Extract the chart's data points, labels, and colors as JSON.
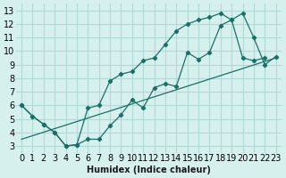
{
  "xlabel": "Humidex (Indice chaleur)",
  "ylabel": "",
  "bg_color": "#d6f0ee",
  "grid_color": "#b0d8d4",
  "line_color": "#1a7068",
  "xlim": [
    -0.5,
    23.5
  ],
  "ylim": [
    2.5,
    13.5
  ],
  "xticks": [
    0,
    1,
    2,
    3,
    4,
    5,
    6,
    7,
    8,
    9,
    10,
    11,
    12,
    13,
    14,
    15,
    16,
    17,
    18,
    19,
    20,
    21,
    22,
    23
  ],
  "yticks": [
    3,
    4,
    5,
    6,
    7,
    8,
    9,
    10,
    11,
    12,
    13
  ],
  "line1_x": [
    0,
    1,
    2,
    3,
    4,
    5,
    6,
    7,
    8,
    9,
    10,
    11,
    12,
    13,
    14,
    15,
    16,
    17,
    18,
    19,
    20,
    21,
    22,
    23
  ],
  "line1_y": [
    6.0,
    5.2,
    4.6,
    4.0,
    3.0,
    3.1,
    3.5,
    3.5,
    4.5,
    5.3,
    6.4,
    5.8,
    7.3,
    7.6,
    7.4,
    9.9,
    9.4,
    9.9,
    11.9,
    12.3,
    12.8,
    11.0,
    9.0,
    9.6
  ],
  "line2_x": [
    0,
    1,
    2,
    3,
    4,
    5,
    6,
    7,
    8,
    9,
    10,
    11,
    12,
    13,
    14,
    15,
    16,
    17,
    18,
    19,
    20,
    21,
    22
  ],
  "line2_y": [
    6.0,
    5.2,
    4.6,
    4.0,
    3.0,
    3.1,
    5.8,
    6.0,
    7.8,
    8.3,
    8.5,
    9.3,
    9.5,
    10.5,
    11.5,
    12.0,
    12.3,
    12.5,
    12.8,
    12.3,
    9.5,
    9.3,
    9.5
  ],
  "line3_x": [
    0,
    23
  ],
  "line3_y": [
    3.5,
    9.5
  ],
  "font_size": 7
}
